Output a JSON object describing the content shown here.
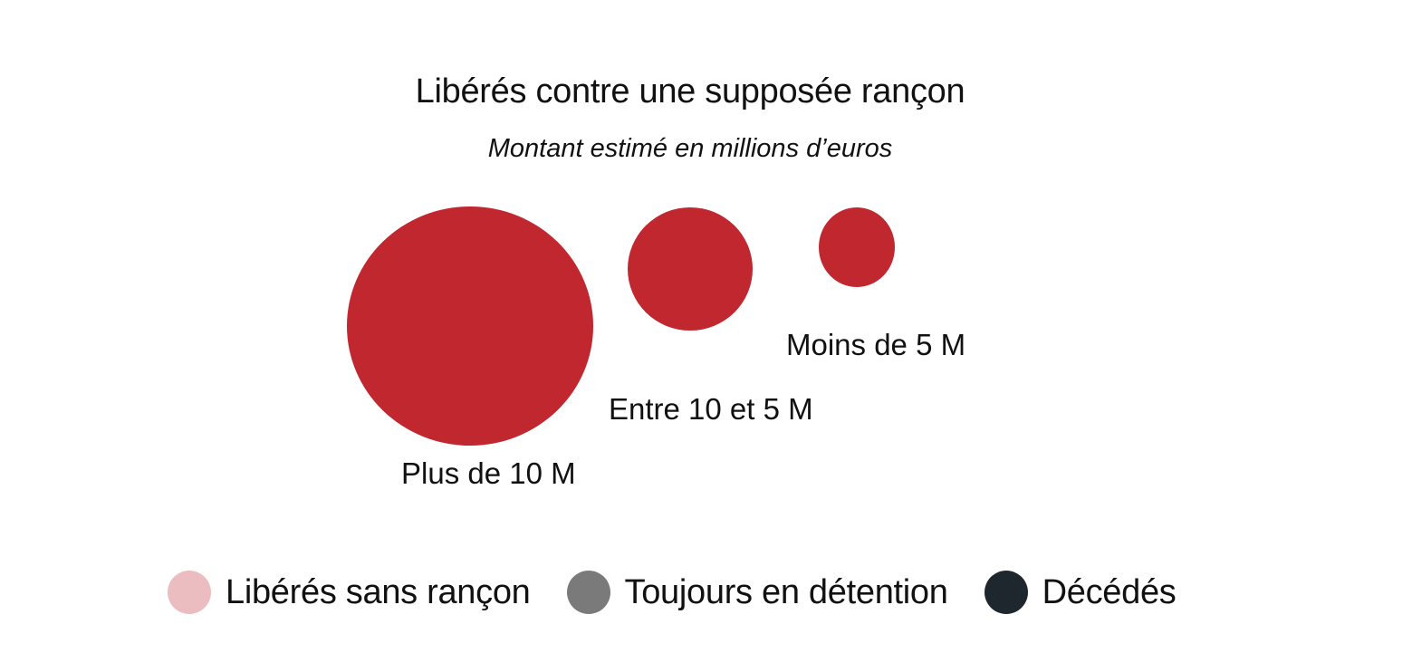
{
  "chart_data": {
    "type": "bubble",
    "title": "Libérés contre une supposée rançon",
    "subtitle": "Montant estimé en millions d’euros",
    "categories": [
      "Plus de 10 M",
      "Entre 10 et 5 M",
      "Moins de 5 M"
    ],
    "bubble_color": "#c1272f",
    "legend": [
      {
        "label": "Libérés sans rançon",
        "color": "#ecbdc0"
      },
      {
        "label": "Toujours en détention",
        "color": "#7a7a7a"
      },
      {
        "label": "Décédés",
        "color": "#1e272e"
      }
    ]
  }
}
